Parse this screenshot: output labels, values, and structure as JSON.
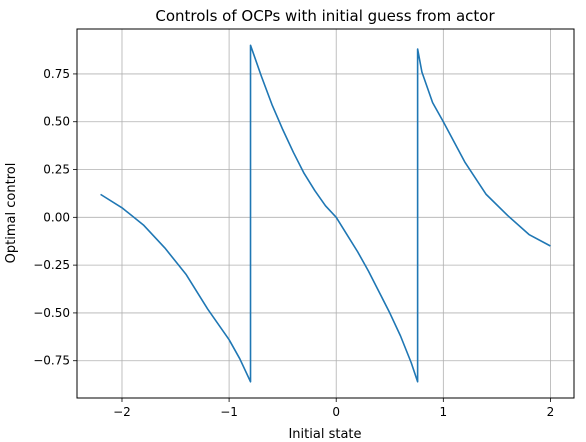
{
  "chart_data": {
    "type": "line",
    "title": "Controls of OCPs with initial guess from actor",
    "xlabel": "Initial state",
    "ylabel": "Optimal control",
    "xlim": [
      -2.42,
      2.22
    ],
    "ylim": [
      -0.945,
      0.985
    ],
    "xticks": [
      -2,
      -1,
      0,
      1,
      2
    ],
    "xtick_labels": [
      "−2",
      "−1",
      "0",
      "1",
      "2"
    ],
    "yticks": [
      -0.75,
      -0.5,
      -0.25,
      0.0,
      0.25,
      0.5,
      0.75
    ],
    "ytick_labels": [
      "−0.75",
      "−0.50",
      "−0.25",
      "0.00",
      "0.25",
      "0.50",
      "0.75"
    ],
    "grid": true,
    "series": [
      {
        "color": "#1f77b4",
        "x": [
          -2.2,
          -2.0,
          -1.8,
          -1.6,
          -1.4,
          -1.2,
          -1.0,
          -0.9,
          -0.8,
          -0.8,
          -0.7,
          -0.6,
          -0.5,
          -0.4,
          -0.3,
          -0.2,
          -0.1,
          0.0,
          0.1,
          0.2,
          0.3,
          0.4,
          0.5,
          0.6,
          0.7,
          0.76,
          0.76,
          0.8,
          0.9,
          1.0,
          1.2,
          1.4,
          1.6,
          1.8,
          2.0
        ],
        "y": [
          0.12,
          0.05,
          -0.04,
          -0.16,
          -0.3,
          -0.48,
          -0.64,
          -0.74,
          -0.86,
          0.9,
          0.74,
          0.59,
          0.46,
          0.34,
          0.23,
          0.14,
          0.06,
          0.0,
          -0.09,
          -0.18,
          -0.28,
          -0.39,
          -0.5,
          -0.62,
          -0.76,
          -0.86,
          0.88,
          0.76,
          0.6,
          0.5,
          0.29,
          0.12,
          0.01,
          -0.09,
          -0.15
        ]
      }
    ]
  }
}
